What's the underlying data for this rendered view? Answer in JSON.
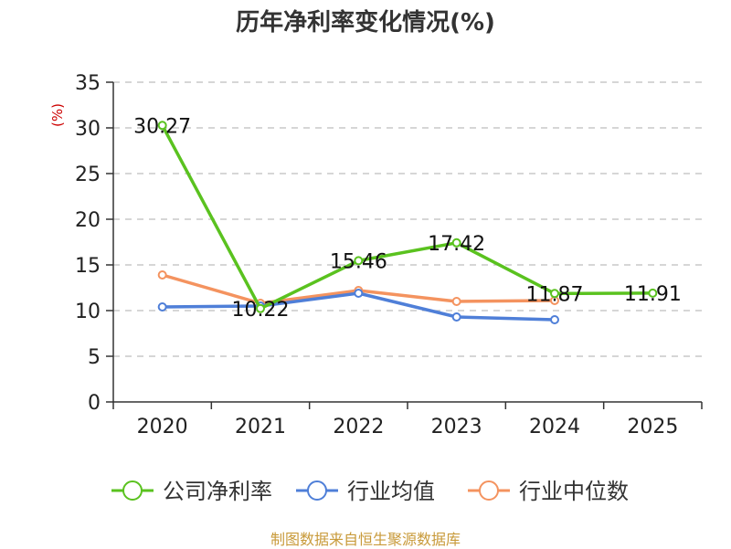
{
  "chart_data": {
    "type": "line",
    "title": "历年净利率变化情况(%)",
    "ylabel": "(%)",
    "xlabel": "",
    "categories": [
      "2020",
      "2021",
      "2022",
      "2023",
      "2024",
      "2025"
    ],
    "ylim": [
      0,
      35
    ],
    "yticks": [
      "0",
      "5",
      "10",
      "15",
      "20",
      "25",
      "30",
      "35"
    ],
    "grid": true,
    "legend_position": "bottom",
    "series": [
      {
        "name": "公司净利率",
        "color": "#5ac21f",
        "values": [
          30.27,
          10.22,
          15.46,
          17.42,
          11.87,
          11.91
        ],
        "labels": [
          "30.27",
          "10.22",
          "15.46",
          "17.42",
          "11.87",
          "11.91"
        ]
      },
      {
        "name": "行业均值",
        "color": "#4f7fd8",
        "values": [
          10.4,
          10.5,
          11.9,
          9.3,
          9.0,
          null
        ],
        "labels": []
      },
      {
        "name": "行业中位数",
        "color": "#f4935f",
        "values": [
          13.9,
          10.8,
          12.2,
          11.0,
          11.1,
          null
        ],
        "labels": []
      }
    ]
  },
  "source": "制图数据来自恒生聚源数据库"
}
